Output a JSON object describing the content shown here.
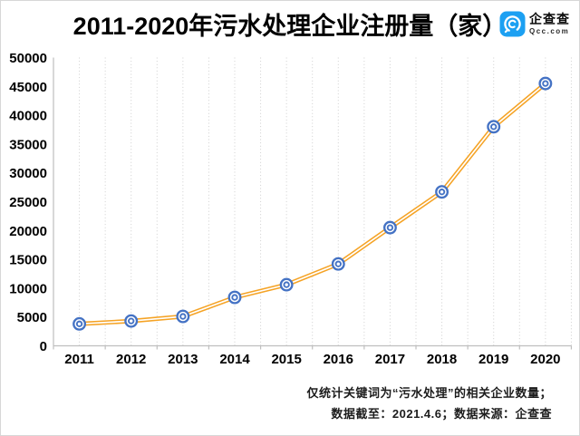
{
  "title": "2011-2020年污水处理企业注册量（家）",
  "logo": {
    "name": "企查查",
    "domain": "Qcc.com",
    "brand_color": "#1CA0F2"
  },
  "footer": {
    "line1": "仅统计关键词为“污水处理”的相关企业数量；",
    "line2": "数据截至：2021.4.6；数据来源：企查查"
  },
  "chart_data": {
    "type": "line",
    "title": "2011-2020年污水处理企业注册量（家）",
    "categories": [
      "2011",
      "2012",
      "2013",
      "2014",
      "2015",
      "2016",
      "2017",
      "2018",
      "2019",
      "2020"
    ],
    "values": [
      3800,
      4300,
      5100,
      8400,
      10600,
      14200,
      20500,
      26700,
      38000,
      45500
    ],
    "xlabel": "",
    "ylabel": "",
    "ylim": [
      0,
      50000
    ],
    "ytick_step": 5000,
    "legend": "none",
    "grid": "vertical-dotted-minor-and-major",
    "line_color": "#F5A325",
    "line_core_color": "#ffffff",
    "marker_color": "#4472C4",
    "axis_color": "#bfbfbf",
    "grid_color": "#cfcfcf",
    "tick_label_color": "#000000"
  }
}
